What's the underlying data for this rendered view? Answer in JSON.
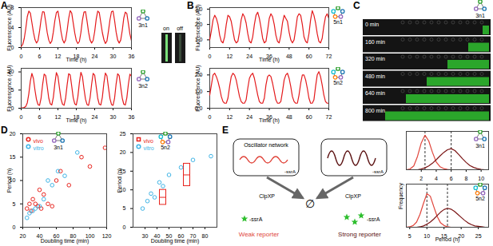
{
  "chart_data": [
    {
      "panel": "A",
      "type": "line",
      "annotations": [
        "3n1"
      ],
      "xlabel": "Time (h)",
      "ylabel": "Fluorescence (AU)",
      "xlim": [
        0,
        36
      ],
      "xticks": [
        0,
        6,
        12,
        18,
        24,
        30,
        36
      ],
      "ylim": [
        0,
        8
      ],
      "yticks": [
        0,
        4,
        8
      ],
      "x": [
        0,
        0.5,
        1,
        1.5,
        2,
        2.5,
        3,
        3.5,
        4,
        4.5,
        5,
        5.5,
        6,
        6.5,
        7,
        7.5,
        8,
        8.5,
        9,
        9.5,
        10,
        10.5,
        11,
        11.5,
        12,
        12.5,
        13,
        13.5,
        14,
        14.5,
        15,
        15.5,
        16,
        16.5,
        17,
        17.5,
        18,
        18.5,
        19,
        19.5,
        20,
        20.5,
        21,
        21.5,
        22,
        22.5,
        23,
        23.5,
        24,
        24.5,
        25,
        25.5,
        26,
        26.5,
        27,
        27.5,
        28,
        28.5,
        29,
        29.5,
        30,
        30.5,
        31,
        31.5,
        32,
        32.5,
        33,
        33.5,
        34,
        34.5,
        35,
        35.5,
        36
      ],
      "series": [
        {
          "color": "#e41a1c",
          "values": [
            0.2,
            0.6,
            1.8,
            3.8,
            6.2,
            7.3,
            6.9,
            5.0,
            3.1,
            1.6,
            0.9,
            1.4,
            3.3,
            5.6,
            7.2,
            7.1,
            5.2,
            3.0,
            1.5,
            0.8,
            1.3,
            3.1,
            5.4,
            7.0,
            7.3,
            5.5,
            3.2,
            1.6,
            0.9,
            1.5,
            3.4,
            5.8,
            7.4,
            6.9,
            4.9,
            2.9,
            1.4,
            0.8,
            1.2,
            3.0,
            5.5,
            7.1,
            7.2,
            5.3,
            3.1,
            1.5,
            0.9,
            1.4,
            3.2,
            5.7,
            7.3,
            7.0,
            5.0,
            3.0,
            1.6,
            0.8,
            1.3,
            3.3,
            5.6,
            7.2,
            7.3,
            5.4,
            3.1,
            1.5,
            0.9,
            1.5,
            3.4,
            5.9,
            7.1,
            6.8,
            4.8,
            2.7,
            1.4
          ]
        }
      ]
    },
    {
      "type": "line",
      "annotations": [
        "3n2"
      ],
      "xlabel": "Time (h)",
      "ylabel": "Fluorescence (AU)",
      "xlim": [
        0,
        36
      ],
      "xticks": [
        0,
        6,
        12,
        18,
        24,
        30,
        36
      ],
      "ylim": [
        0,
        11
      ],
      "yticks": [
        0,
        5,
        10
      ],
      "x": [
        0,
        0.5,
        1,
        1.5,
        2,
        2.5,
        3,
        3.5,
        4,
        4.5,
        5,
        5.5,
        6,
        6.5,
        7,
        7.5,
        8,
        8.5,
        9,
        9.5,
        10,
        10.5,
        11,
        11.5,
        12,
        12.5,
        13,
        13.5,
        14,
        14.5,
        15,
        15.5,
        16,
        16.5,
        17,
        17.5,
        18,
        18.5,
        19,
        19.5,
        20,
        20.5,
        21,
        21.5,
        22,
        22.5,
        23,
        23.5,
        24,
        24.5,
        25,
        25.5,
        26,
        26.5,
        27,
        27.5,
        28,
        28.5,
        29,
        29.5,
        30,
        30.5,
        31,
        31.5,
        32,
        32.5,
        33,
        33.5,
        34,
        34.5,
        35,
        35.5,
        36
      ],
      "series": [
        {
          "color": "#e41a1c",
          "values": [
            0.1,
            0.1,
            0.2,
            0.5,
            1.5,
            4.0,
            7.5,
            9.6,
            8.2,
            5.0,
            2.4,
            1.0,
            0.8,
            2.8,
            6.5,
            9.4,
            9.0,
            6.0,
            2.8,
            1.2,
            0.9,
            3.0,
            6.8,
            9.8,
            8.8,
            5.6,
            2.6,
            1.1,
            0.8,
            2.7,
            6.4,
            9.5,
            9.2,
            6.1,
            2.9,
            1.2,
            0.9,
            3.1,
            7.0,
            9.9,
            8.7,
            5.4,
            2.5,
            1.0,
            0.8,
            2.9,
            6.6,
            9.6,
            9.1,
            5.9,
            2.7,
            1.1,
            0.9,
            3.0,
            6.9,
            9.7,
            8.9,
            5.7,
            2.6,
            1.0,
            0.8,
            2.8,
            6.7,
            9.5,
            9.0,
            5.8,
            2.8,
            1.1,
            0.9,
            2.9,
            6.6,
            9.4,
            8.8
          ]
        }
      ]
    },
    {
      "panel": "B",
      "type": "line",
      "annotations": [
        "5n1"
      ],
      "xlabel": "Time (h)",
      "ylabel": "Fluorescence (AU)",
      "xlim": [
        0,
        72
      ],
      "xticks": [
        0,
        12,
        24,
        36,
        48,
        60,
        72
      ],
      "ylim": [
        0.5,
        3.1
      ],
      "yticks": [
        1,
        2,
        3
      ],
      "x": [
        0,
        1,
        2,
        3,
        4,
        5,
        6,
        7,
        8,
        9,
        10,
        11,
        12,
        13,
        14,
        15,
        16,
        17,
        18,
        19,
        20,
        21,
        22,
        23,
        24,
        25,
        26,
        27,
        28,
        29,
        30,
        31,
        32,
        33,
        34,
        35,
        36,
        37,
        38,
        39,
        40,
        41,
        42,
        43,
        44,
        45,
        46,
        47,
        48,
        49,
        50,
        51,
        52,
        53,
        54,
        55,
        56,
        57,
        58,
        59,
        60,
        61,
        62,
        63,
        64,
        65,
        66,
        67,
        68,
        69,
        70,
        71,
        72
      ],
      "series": [
        {
          "color": "#e41a1c",
          "values": [
            1.0,
            1.6,
            2.3,
            2.6,
            2.4,
            2.0,
            1.3,
            0.9,
            0.8,
            1.2,
            2.0,
            2.6,
            2.5,
            2.2,
            1.6,
            1.0,
            0.8,
            0.9,
            1.5,
            2.3,
            2.7,
            2.5,
            2.1,
            1.4,
            0.9,
            0.8,
            1.2,
            2.0,
            2.6,
            2.8,
            2.4,
            1.8,
            1.1,
            0.8,
            0.9,
            1.6,
            2.4,
            2.7,
            2.5,
            2.0,
            1.3,
            0.9,
            0.8,
            1.3,
            2.1,
            2.6,
            2.4,
            2.2,
            1.5,
            1.0,
            0.8,
            1.0,
            1.7,
            2.5,
            2.7,
            2.6,
            2.0,
            1.2,
            0.9,
            0.8,
            1.4,
            2.3,
            2.9,
            2.6,
            2.1,
            1.4,
            0.9,
            0.8,
            1.1,
            1.9,
            2.5,
            2.7,
            2.4
          ]
        }
      ]
    },
    {
      "type": "line",
      "annotations": [
        "5n2"
      ],
      "xlabel": "Time (h)",
      "ylabel": "Fluorescence (AU)",
      "xlim": [
        0,
        72
      ],
      "xticks": [
        0,
        12,
        24,
        36,
        48,
        60,
        72
      ],
      "ylim": [
        0,
        2.4
      ],
      "yticks": [
        0,
        1,
        2
      ],
      "x": [
        0,
        1,
        2,
        3,
        4,
        5,
        6,
        7,
        8,
        9,
        10,
        11,
        12,
        13,
        14,
        15,
        16,
        17,
        18,
        19,
        20,
        21,
        22,
        23,
        24,
        25,
        26,
        27,
        28,
        29,
        30,
        31,
        32,
        33,
        34,
        35,
        36,
        37,
        38,
        39,
        40,
        41,
        42,
        43,
        44,
        45,
        46,
        47,
        48,
        49,
        50,
        51,
        52,
        53,
        54,
        55,
        56,
        57,
        58,
        59,
        60,
        61,
        62,
        63,
        64,
        65,
        66,
        67,
        68,
        69,
        70,
        71,
        72
      ],
      "series": [
        {
          "color": "#e41a1c",
          "values": [
            0.8,
            1.4,
            2.0,
            2.1,
            1.9,
            1.6,
            1.2,
            0.7,
            0.4,
            0.3,
            0.3,
            0.6,
            1.3,
            1.9,
            2.1,
            2.0,
            1.7,
            1.2,
            0.7,
            0.4,
            0.3,
            0.3,
            0.5,
            1.2,
            1.8,
            2.0,
            2.1,
            1.8,
            1.3,
            0.8,
            0.4,
            0.3,
            0.3,
            0.6,
            1.4,
            1.9,
            2.0,
            1.9,
            1.5,
            1.0,
            0.5,
            0.3,
            0.3,
            0.4,
            1.0,
            1.7,
            2.0,
            2.1,
            1.8,
            1.3,
            0.7,
            0.4,
            0.3,
            0.3,
            0.8,
            1.5,
            2.0,
            2.0,
            1.7,
            1.2,
            0.6,
            0.3,
            0.3,
            0.5,
            1.3,
            2.0,
            2.2,
            1.9,
            1.4,
            0.8,
            0.4,
            0.3,
            0.3
          ]
        }
      ]
    },
    {
      "panel": "D",
      "type": "scatter",
      "annotations": [
        "3n1"
      ],
      "xlabel": "Doubling time (min)",
      "ylabel": "Period (h)",
      "legend": "top-left",
      "xlim": [
        20,
        120
      ],
      "xticks": [
        20,
        40,
        60,
        80,
        100,
        120
      ],
      "ylim": [
        0,
        20
      ],
      "yticks": [
        0,
        5,
        10,
        15,
        20
      ],
      "series": [
        {
          "name": "vivo",
          "color": "#e8231d",
          "marker": "circle",
          "x": [
            25,
            28,
            30,
            32,
            35,
            38,
            40,
            42,
            45,
            50,
            55,
            60,
            65,
            75,
            90,
            100,
            118
          ],
          "values": [
            4,
            5,
            3.5,
            6,
            5,
            4.5,
            8,
            4,
            7,
            5,
            4.5,
            10,
            12,
            9,
            15,
            13,
            17
          ]
        },
        {
          "name": "vitro",
          "color": "#3fb4e6",
          "marker": "circle",
          "x": [
            25,
            28,
            32,
            35,
            40,
            45,
            50,
            55,
            62,
            70,
            85
          ],
          "values": [
            2,
            3,
            3.5,
            4,
            4.5,
            6,
            10,
            9,
            12,
            11,
            16
          ]
        }
      ]
    },
    {
      "type": "scatter",
      "annotations": [
        "5n2"
      ],
      "xlabel": "Doubling time (min)",
      "ylabel": "Period (h)",
      "legend": "top-left",
      "xlim": [
        20,
        90
      ],
      "xticks": [
        30,
        40,
        50,
        60,
        70,
        80
      ],
      "ylim": [
        0,
        25
      ],
      "yticks": [
        0,
        5,
        10,
        15,
        20,
        25
      ],
      "series": [
        {
          "name": "vivo",
          "color": "#e8231d",
          "marker": "box",
          "x": [
            45,
            65
          ],
          "values": [
            8,
            14
          ],
          "low": [
            6,
            11
          ],
          "high": [
            10,
            17
          ]
        },
        {
          "name": "vitro",
          "color": "#3fb4e6",
          "marker": "circle",
          "x": [
            28,
            32,
            35,
            38,
            42,
            45,
            50,
            60,
            70,
            85
          ],
          "values": [
            5,
            7,
            9,
            8,
            12,
            11,
            14,
            16,
            18,
            19
          ]
        }
      ]
    },
    {
      "type": "line",
      "annotations": [
        "3n1"
      ],
      "ylabel": "Frequency",
      "tick_labels": "x",
      "vlines": [
        2.5,
        6
      ],
      "xlim": [
        0,
        11
      ],
      "xticks": [
        2,
        4,
        6,
        8,
        10
      ],
      "ylim": [
        0,
        1
      ],
      "x": [
        0,
        0.5,
        1,
        1.5,
        2,
        2.5,
        3,
        3.5,
        4,
        4.5,
        5,
        5.5,
        6,
        6.5,
        7,
        7.5,
        8,
        8.5,
        9,
        9.5,
        10,
        10.5,
        11
      ],
      "series": [
        {
          "name": "Weak reporter",
          "color": "#e0443a",
          "values": [
            0,
            0.02,
            0.1,
            0.35,
            0.7,
            0.9,
            0.75,
            0.45,
            0.2,
            0.08,
            0.03,
            0.01,
            0,
            0,
            0,
            0,
            0,
            0,
            0,
            0,
            0,
            0,
            0
          ]
        },
        {
          "name": "Strong reporter",
          "color": "#7a1414",
          "values": [
            0,
            0,
            0,
            0,
            0.02,
            0.05,
            0.1,
            0.17,
            0.26,
            0.36,
            0.45,
            0.52,
            0.55,
            0.5,
            0.4,
            0.29,
            0.19,
            0.11,
            0.06,
            0.03,
            0.01,
            0,
            0
          ]
        }
      ]
    },
    {
      "type": "line",
      "annotations": [
        "5n2"
      ],
      "xlabel": "Period (h)",
      "tick_labels": "x",
      "vlines": [
        10,
        16
      ],
      "xlim": [
        4,
        28
      ],
      "xticks": [
        5,
        10,
        15,
        20,
        25
      ],
      "ylim": [
        0,
        1
      ],
      "x": [
        4,
        5,
        6,
        7,
        8,
        9,
        10,
        11,
        12,
        13,
        14,
        15,
        16,
        17,
        18,
        19,
        20,
        21,
        22,
        23,
        24,
        25,
        26,
        27,
        28
      ],
      "series": [
        {
          "name": "Weak reporter",
          "color": "#e0443a",
          "values": [
            0,
            0.01,
            0.04,
            0.12,
            0.3,
            0.55,
            0.78,
            0.72,
            0.48,
            0.25,
            0.1,
            0.04,
            0.01,
            0,
            0,
            0,
            0,
            0,
            0,
            0,
            0,
            0,
            0,
            0,
            0
          ]
        },
        {
          "name": "Strong reporter",
          "color": "#7a1414",
          "values": [
            0,
            0,
            0,
            0,
            0.01,
            0.03,
            0.07,
            0.12,
            0.19,
            0.27,
            0.35,
            0.41,
            0.44,
            0.42,
            0.37,
            0.3,
            0.23,
            0.16,
            0.1,
            0.06,
            0.03,
            0.02,
            0.01,
            0,
            0
          ]
        }
      ]
    }
  ],
  "panel_a_inset": {
    "labels": [
      "on",
      "off"
    ]
  },
  "panel_c": {
    "panel": "C",
    "network": "3n1",
    "times": [
      "0 min",
      "160 min",
      "320 min",
      "480 min",
      "640 min",
      "800 min"
    ]
  },
  "panel_e_diagram": {
    "panel": "E",
    "network": "Oscillator network",
    "tag": "-ssrA",
    "protease": "ClpXP",
    "sink": "∅",
    "weak": "Weak reporter",
    "strong": "Strong reporter"
  }
}
